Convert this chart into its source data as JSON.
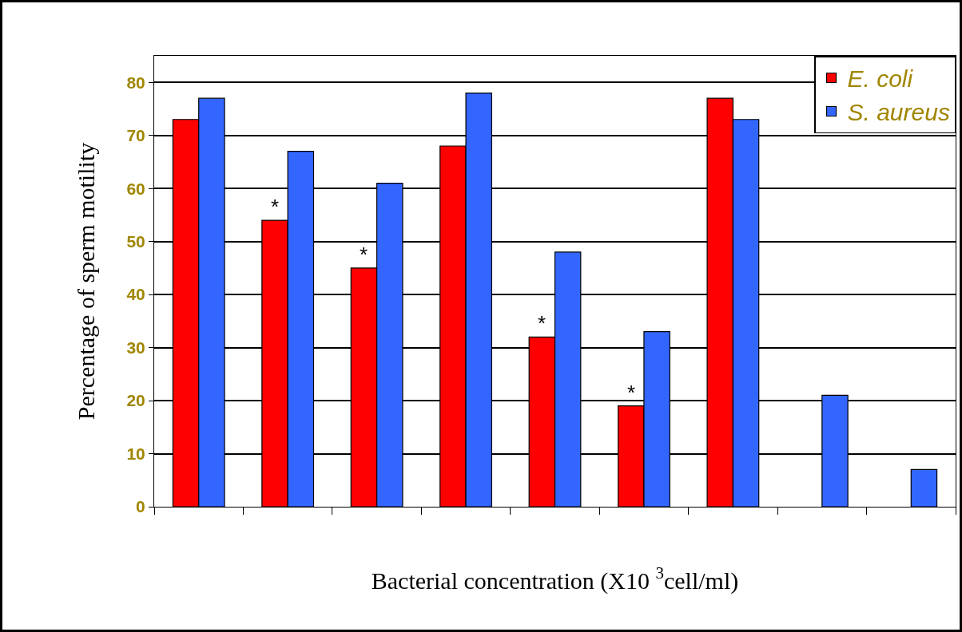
{
  "chart_data": {
    "type": "bar",
    "xlabel": "Bacterial concentration (X10 $^{3}$cell/ml)",
    "ylabel": "Percentage of sperm motility",
    "categories": [
      null,
      null,
      null,
      null,
      null,
      null,
      null,
      null,
      null
    ],
    "series": [
      {
        "name": "E. coli",
        "color": "#ff0000",
        "values": [
          73,
          54,
          45,
          68,
          32,
          19,
          77,
          null,
          null
        ]
      },
      {
        "name": "S. aureus",
        "color": "#3366ff",
        "values": [
          77,
          67,
          61,
          78,
          48,
          33,
          73,
          21,
          7
        ]
      }
    ],
    "annotations": [
      {
        "text": "*",
        "y": 54
      },
      {
        "text": "*",
        "y": 45
      },
      {
        "text": "*",
        "y": 32
      },
      {
        "text": "*",
        "y": 19
      }
    ],
    "ylim": [
      0,
      85
    ],
    "yticks": [
      0,
      10,
      20,
      30,
      40,
      50,
      60,
      70,
      80
    ],
    "grid": "y",
    "legend": "top right",
    "tick_labels": "y"
  }
}
